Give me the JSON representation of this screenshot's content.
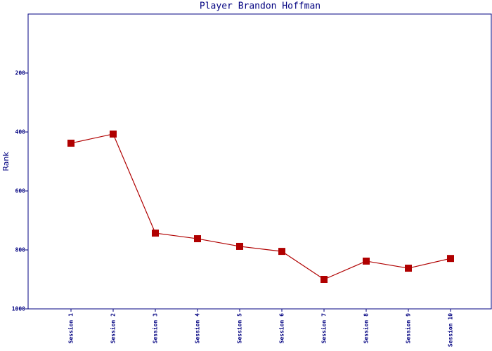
{
  "chart_data": {
    "type": "line",
    "title": "Player Brandon Hoffman",
    "y_label": "Rank",
    "categories": [
      "Session 1",
      "Session 2",
      "Session 3",
      "Session 4",
      "Session 5",
      "Session 6",
      "Session 7",
      "Session 8",
      "Session 9",
      "Session 10"
    ],
    "series": [
      {
        "name": "Rank",
        "color": "#b00000",
        "values": [
          438,
          407,
          743,
          762,
          788,
          805,
          900,
          838,
          862,
          829
        ]
      }
    ],
    "ylim": [
      0,
      1000
    ],
    "y_inverted": true,
    "yticks": [
      200,
      400,
      600,
      800,
      1000
    ]
  }
}
